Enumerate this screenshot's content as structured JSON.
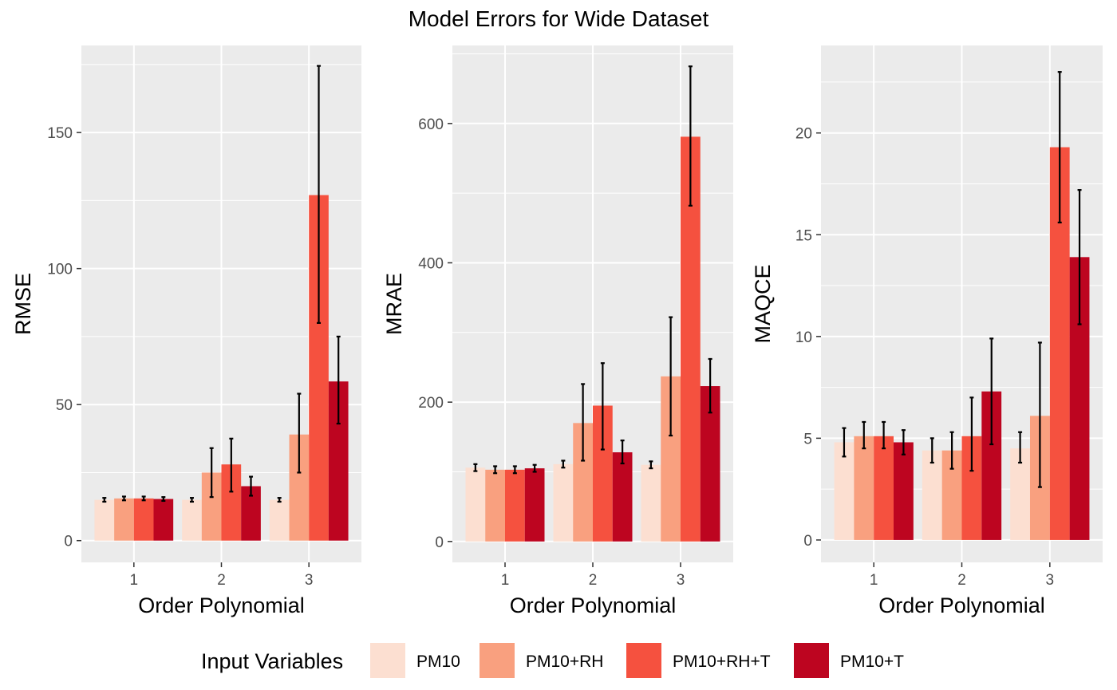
{
  "title": "Model Errors for Wide Dataset",
  "legend": {
    "title": "Input Variables",
    "items": [
      {
        "label": "PM10",
        "color": "#fcdfd1"
      },
      {
        "label": "PM10+RH",
        "color": "#f9a07f"
      },
      {
        "label": "PM10+RH+T",
        "color": "#f5513f"
      },
      {
        "label": "PM10+T",
        "color": "#bd0520"
      }
    ]
  },
  "chart_data": [
    {
      "type": "bar",
      "title": "",
      "xlabel": "Order Polynomial",
      "ylabel": "RMSE",
      "categories": [
        "1",
        "2",
        "3"
      ],
      "ylim": [
        -8,
        182
      ],
      "yticks": [
        0,
        50,
        100,
        150
      ],
      "grid": true,
      "series": [
        {
          "name": "PM10",
          "values": [
            15,
            15,
            15
          ],
          "err_low": [
            14.3,
            14.3,
            14.3
          ],
          "err_high": [
            15.7,
            15.7,
            15.7
          ]
        },
        {
          "name": "PM10+RH",
          "values": [
            15.5,
            25,
            39
          ],
          "err_low": [
            14.8,
            16,
            25
          ],
          "err_high": [
            16.2,
            34,
            54
          ]
        },
        {
          "name": "PM10+RH+T",
          "values": [
            15.5,
            28,
            127
          ],
          "err_low": [
            14.8,
            18,
            80
          ],
          "err_high": [
            16.2,
            37.5,
            174.5
          ]
        },
        {
          "name": "PM10+T",
          "values": [
            15.3,
            20,
            58.5
          ],
          "err_low": [
            14.6,
            16.5,
            43
          ],
          "err_high": [
            16,
            23.5,
            75
          ]
        }
      ]
    },
    {
      "type": "bar",
      "title": "",
      "xlabel": "Order Polynomial",
      "ylabel": "MRAE",
      "categories": [
        "1",
        "2",
        "3"
      ],
      "ylim": [
        -30,
        712
      ],
      "yticks": [
        0,
        200,
        400,
        600
      ],
      "grid": true,
      "series": [
        {
          "name": "PM10",
          "values": [
            106,
            111,
            110
          ],
          "err_low": [
            101,
            106,
            105
          ],
          "err_high": [
            111,
            116,
            115
          ]
        },
        {
          "name": "PM10+RH",
          "values": [
            103,
            170,
            237
          ],
          "err_low": [
            98,
            116,
            152
          ],
          "err_high": [
            108,
            226,
            322
          ]
        },
        {
          "name": "PM10+RH+T",
          "values": [
            103,
            195,
            581
          ],
          "err_low": [
            98,
            132,
            482
          ],
          "err_high": [
            108,
            256,
            682
          ]
        },
        {
          "name": "PM10+T",
          "values": [
            105,
            128,
            223
          ],
          "err_low": [
            100,
            112,
            185
          ],
          "err_high": [
            110,
            145,
            262
          ]
        }
      ]
    },
    {
      "type": "bar",
      "title": "",
      "xlabel": "Order Polynomial",
      "ylabel": "MAQCE",
      "categories": [
        "1",
        "2",
        "3"
      ],
      "ylim": [
        -1.1,
        24.3
      ],
      "yticks": [
        0,
        5,
        10,
        15,
        20
      ],
      "grid": true,
      "series": [
        {
          "name": "PM10",
          "values": [
            4.8,
            4.4,
            4.5
          ],
          "err_low": [
            4.1,
            3.8,
            3.8
          ],
          "err_high": [
            5.5,
            5,
            5.3
          ]
        },
        {
          "name": "PM10+RH",
          "values": [
            5.1,
            4.4,
            6.1
          ],
          "err_low": [
            4.5,
            3.5,
            2.6
          ],
          "err_high": [
            5.8,
            5.3,
            9.7
          ]
        },
        {
          "name": "PM10+RH+T",
          "values": [
            5.1,
            5.1,
            19.3
          ],
          "err_low": [
            4.5,
            3.4,
            15.6
          ],
          "err_high": [
            5.8,
            7,
            23
          ]
        },
        {
          "name": "PM10+T",
          "values": [
            4.8,
            7.3,
            13.9
          ],
          "err_low": [
            4.2,
            4.7,
            10.6
          ],
          "err_high": [
            5.4,
            9.9,
            17.2
          ]
        }
      ]
    }
  ]
}
